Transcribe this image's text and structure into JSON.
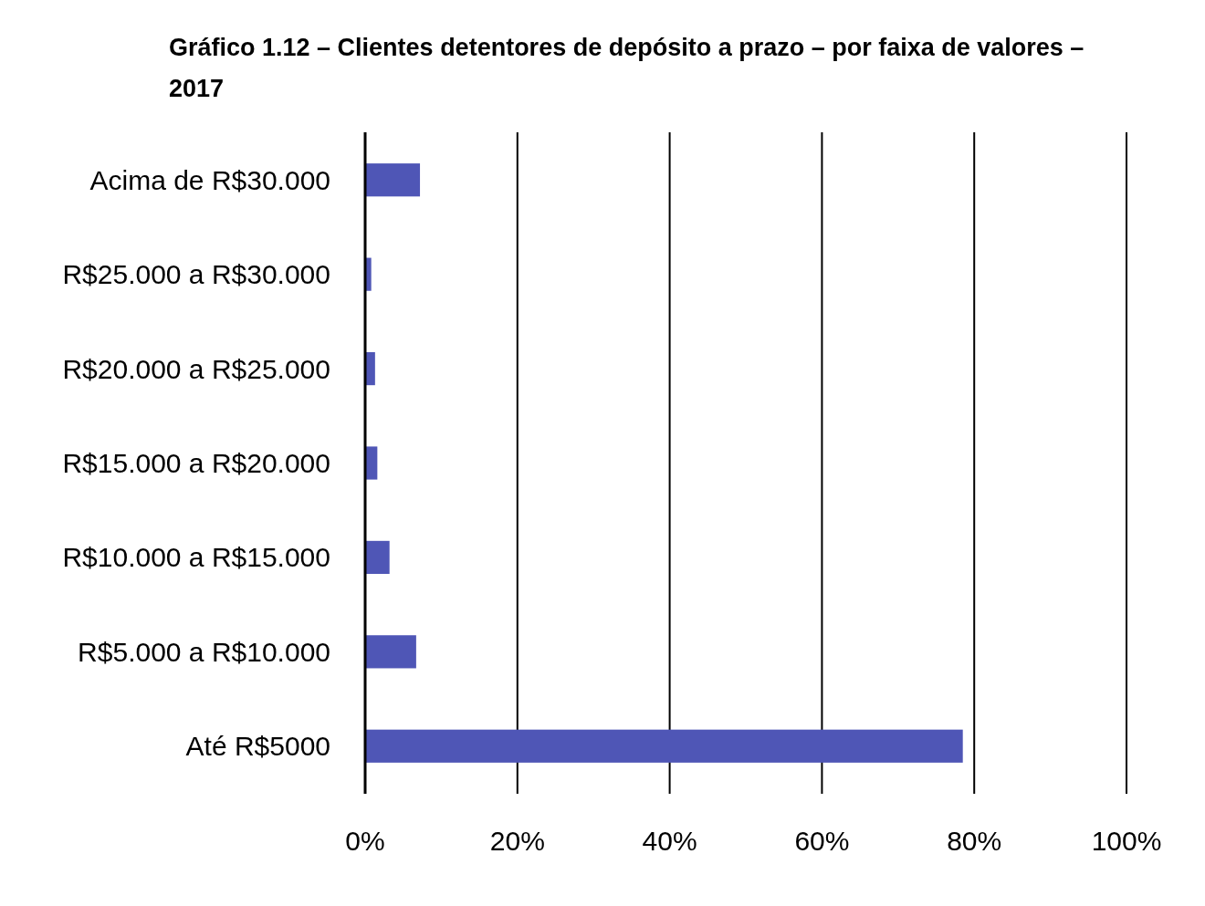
{
  "chart_data": {
    "type": "bar",
    "orientation": "horizontal",
    "title": "Gráfico 1.12 – Clientes detentores de depósito a prazo – por faixa de valores – 2017",
    "categories": [
      "Acima de R$30.000",
      "R$25.000 a R$30.000",
      "R$20.000 a R$25.000",
      "R$15.000 a R$20.000",
      "R$10.000 a R$15.000",
      "R$5.000 a R$10.000",
      "Até R$5000"
    ],
    "values": [
      7.2,
      0.8,
      1.3,
      1.6,
      3.2,
      6.7,
      78.5
    ],
    "color": "#4f56b6",
    "xlim": [
      0,
      100
    ],
    "xticks": [
      {
        "value": 0,
        "label": "0%"
      },
      {
        "value": 20,
        "label": "20%"
      },
      {
        "value": 40,
        "label": "40%"
      },
      {
        "value": 60,
        "label": "60%"
      },
      {
        "value": 80,
        "label": "80%"
      },
      {
        "value": 100,
        "label": "100%"
      }
    ],
    "grid": "x"
  }
}
